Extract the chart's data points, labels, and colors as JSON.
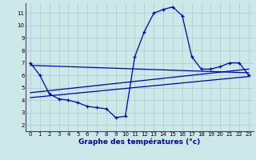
{
  "title": "Graphe des températures (°c)",
  "background_color": "#cce8e8",
  "grid_color": "#aacaca",
  "line_color": "#0000bb",
  "xlim": [
    -0.5,
    23.5
  ],
  "ylim": [
    1.5,
    11.8
  ],
  "yticks": [
    2,
    3,
    4,
    5,
    6,
    7,
    8,
    9,
    10,
    11
  ],
  "xticks": [
    0,
    1,
    2,
    3,
    4,
    5,
    6,
    7,
    8,
    9,
    10,
    11,
    12,
    13,
    14,
    15,
    16,
    17,
    18,
    19,
    20,
    21,
    22,
    23
  ],
  "series": {
    "temperature": {
      "x": [
        0,
        1,
        2,
        3,
        4,
        5,
        6,
        7,
        8,
        9,
        10,
        11,
        12,
        13,
        14,
        15,
        16,
        17,
        18,
        19,
        20,
        21,
        22,
        23
      ],
      "y": [
        7.0,
        6.0,
        4.5,
        4.1,
        4.0,
        3.8,
        3.5,
        3.4,
        3.3,
        2.6,
        2.7,
        7.5,
        9.5,
        11.0,
        11.3,
        11.5,
        10.8,
        7.5,
        6.5,
        6.5,
        6.7,
        7.0,
        7.0,
        6.0
      ]
    },
    "line1": {
      "x": [
        0,
        23
      ],
      "y": [
        6.8,
        6.2
      ]
    },
    "line2": {
      "x": [
        0,
        23
      ],
      "y": [
        4.6,
        6.5
      ]
    },
    "line3": {
      "x": [
        0,
        23
      ],
      "y": [
        4.2,
        5.9
      ]
    }
  }
}
